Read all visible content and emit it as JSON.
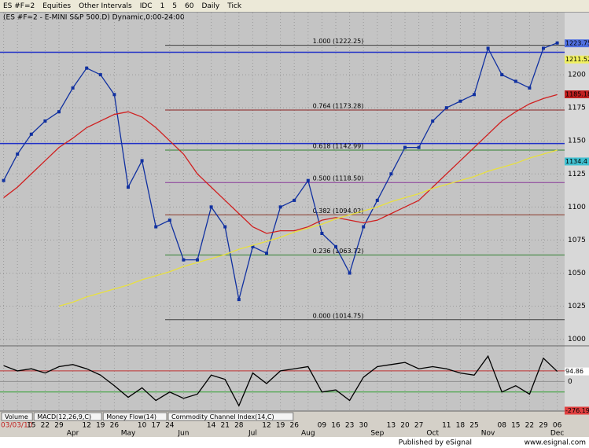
{
  "toolbar": [
    "ES #F=2",
    "Equities",
    "Other Intervals",
    "IDC",
    "1",
    "5",
    "60",
    "Daily",
    "Tick"
  ],
  "tabs": [
    "Volume",
    "MACD(12,26,9,C)",
    "Money Flow(14)",
    "Commodity Channel Index(14,C)"
  ],
  "footer": {
    "left": "Published by eSignal",
    "right": "www.esignal.com"
  },
  "chart_data": [
    {
      "type": "line",
      "title": "(ES #F=2 - E-MINI S&P 500,D) Dynamic,0:00-24:00",
      "categories": [
        "03/03/10",
        null,
        "15",
        "22",
        "29",
        null,
        "12",
        "19",
        "26",
        null,
        "10",
        "17",
        "24",
        null,
        null,
        "14",
        "21",
        "28",
        null,
        "12",
        "19",
        "26",
        null,
        "09",
        "16",
        "23",
        "30",
        null,
        "13",
        "20",
        "27",
        null,
        "11",
        "18",
        "25",
        null,
        "08",
        "15",
        "22",
        "29",
        "06"
      ],
      "month_labels": [
        null,
        null,
        null,
        null,
        null,
        "Apr",
        null,
        null,
        null,
        "May",
        null,
        null,
        null,
        "Jun",
        null,
        null,
        null,
        null,
        "Jul",
        null,
        null,
        null,
        "Aug",
        null,
        null,
        null,
        null,
        "Sep",
        null,
        null,
        null,
        "Oct",
        null,
        null,
        null,
        "Nov",
        null,
        null,
        null,
        null,
        "Dec"
      ],
      "series": [
        {
          "name": "price",
          "color": "#1030a0",
          "values": [
            1120,
            1140,
            1155,
            1165,
            1172,
            1190,
            1205,
            1200,
            1185,
            1115,
            1135,
            1085,
            1090,
            1060,
            1060,
            1100,
            1085,
            1030,
            1070,
            1065,
            1100,
            1105,
            1120,
            1080,
            1070,
            1050,
            1085,
            1105,
            1125,
            1145,
            1145,
            1165,
            1175,
            1180,
            1185,
            1220,
            1200,
            1195,
            1190,
            1220,
            1224
          ]
        },
        {
          "name": "ma",
          "color": "#d02020",
          "values": [
            1107,
            1115,
            1125,
            1135,
            1145,
            1152,
            1160,
            1165,
            1170,
            1172,
            1168,
            1160,
            1150,
            1140,
            1125,
            1115,
            1105,
            1095,
            1085,
            1080,
            1082,
            1082,
            1085,
            1090,
            1092,
            1090,
            1088,
            1090,
            1095,
            1100,
            1105,
            1115,
            1125,
            1135,
            1145,
            1155,
            1165,
            1172,
            1178,
            1182,
            1185
          ]
        },
        {
          "name": "trend",
          "color": "#e8e040",
          "values": [
            null,
            null,
            null,
            null,
            1025,
            1028,
            1032,
            1035,
            1038,
            1041,
            1045,
            1048,
            1051,
            1055,
            1058,
            1061,
            1064,
            1068,
            1071,
            1074,
            1077,
            1081,
            1084,
            1087,
            1091,
            1094,
            1097,
            1100,
            1104,
            1107,
            1110,
            1114,
            1117,
            1120,
            1123,
            1127,
            1130,
            1133,
            1137,
            1140,
            1143
          ]
        }
      ],
      "levels": [
        {
          "label": "1.000 (1222.25)",
          "value": 1222.25,
          "color": "#404040"
        },
        {
          "label": "0.764 (1173.28)",
          "value": 1173.28,
          "color": "#8a2020"
        },
        {
          "label": "0.618 (1142.99)",
          "value": 1142.99,
          "color": "#308030"
        },
        {
          "label": "0.500 (1118.50)",
          "value": 1118.5,
          "color": "#8a3a9a"
        },
        {
          "label": "0.382 (1094.02)",
          "value": 1094.02,
          "color": "#8a3a2a"
        },
        {
          "label": "0.236 (1063.72)",
          "value": 1063.72,
          "color": "#308030"
        },
        {
          "label": "0.000 (1014.75)",
          "value": 1014.75,
          "color": "#404040"
        }
      ],
      "hlines": [
        {
          "value": 1217,
          "color": "#2030c8"
        },
        {
          "value": 1148,
          "color": "#2030c8"
        }
      ],
      "tags": [
        {
          "value": 1223.75,
          "color": "#5070e0"
        },
        {
          "value": 1211.52,
          "color": "#f0f060"
        },
        {
          "value": 1185.18,
          "color": "#c02020"
        },
        {
          "value": 1134.4,
          "color": "#40c0d0"
        }
      ],
      "ylim": [
        995,
        1247
      ],
      "yticks": [
        1000,
        1025,
        1050,
        1075,
        1100,
        1125,
        1150,
        1175,
        1200
      ],
      "grid": true
    },
    {
      "type": "line",
      "series": [
        {
          "name": "Commodity Channel Index(14,C)",
          "color": "#000000",
          "values": [
            150,
            100,
            120,
            80,
            140,
            160,
            120,
            60,
            -40,
            -150,
            -60,
            -180,
            -100,
            -160,
            -120,
            60,
            20,
            -230,
            80,
            -20,
            100,
            120,
            140,
            -100,
            -80,
            -180,
            40,
            140,
            160,
            180,
            120,
            140,
            120,
            80,
            60,
            240,
            -100,
            -40,
            -120,
            220,
            95
          ]
        }
      ],
      "levels": [
        {
          "value": 100,
          "color": "#c03030"
        },
        {
          "value": 0,
          "color": "#909090"
        },
        {
          "value": -100,
          "color": "#30a030"
        }
      ],
      "tags": [
        {
          "value": 94.86,
          "color": "#ffffff"
        },
        {
          "value": -276.19,
          "color": "#e04040"
        }
      ],
      "ylim": [
        -280,
        300
      ],
      "yticks": [
        0
      ]
    }
  ]
}
